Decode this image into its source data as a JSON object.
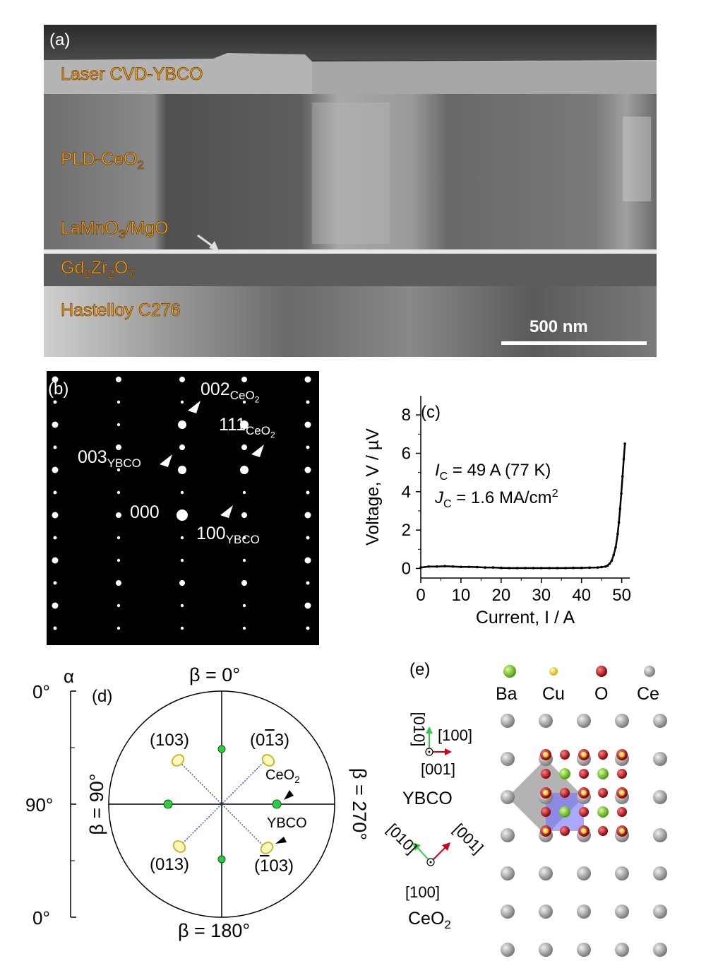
{
  "panel_a": {
    "label": "(a)",
    "layers": [
      "Laser CVD-YBCO",
      "PLD-CeO",
      "LaMnO",
      "/MgO",
      "Gd",
      "Zr",
      "O",
      "Hastelloy C276"
    ],
    "sub_ceo2": "2",
    "sub_lamno3": "3",
    "sub_gd": "2",
    "sub_zr": "2",
    "sub_o": "7",
    "scale_bar": "500 nm",
    "colors": {
      "label": "#f5a623",
      "outline": "#6b3a00",
      "bg": "#3a3a3a"
    }
  },
  "panel_b": {
    "label": "(b)",
    "annotations": {
      "s002": "002",
      "s002_sub": "CeO",
      "s111": "111",
      "s111_sub": "CeO",
      "s003": "003",
      "s003_sub": "YBCO",
      "s000": "000",
      "s100": "100",
      "s100_sub": "YBCO",
      "sub2": "2"
    }
  },
  "panel_c": {
    "label": "(c)",
    "ic_text_1": "I",
    "ic_text_2": "C",
    "ic_text_3": " = 49 A (77 K)",
    "jc_text_1": "J",
    "jc_text_2": "C",
    "jc_text_3": " = 1.6 MA/cm",
    "jc_text_4": "2",
    "chart_data": {
      "type": "line",
      "xlabel": "Current, I / A",
      "ylabel": "Voltage, V / µV",
      "xlim": [
        0,
        52
      ],
      "ylim": [
        -0.5,
        9
      ],
      "xticks": [
        0,
        10,
        20,
        30,
        40,
        50
      ],
      "yticks": [
        0,
        2,
        4,
        6,
        8
      ],
      "x": [
        0,
        2,
        4,
        6,
        8,
        10,
        12,
        14,
        16,
        18,
        20,
        22,
        24,
        26,
        28,
        30,
        32,
        34,
        36,
        38,
        40,
        42,
        44,
        45,
        46,
        46.5,
        47,
        47.5,
        48,
        48.5,
        49,
        49.3,
        49.6,
        49.9,
        50.2,
        50.5,
        50.8
      ],
      "y": [
        0.05,
        0.1,
        0.1,
        0.12,
        0.1,
        0.08,
        0.08,
        0.07,
        0.05,
        0.05,
        0.03,
        0.02,
        0.02,
        0.02,
        0.02,
        0.02,
        0.02,
        0.02,
        0.02,
        0.03,
        0.03,
        0.04,
        0.05,
        0.07,
        0.1,
        0.15,
        0.25,
        0.4,
        0.7,
        1.1,
        1.8,
        2.4,
        3.1,
        3.9,
        4.8,
        5.7,
        6.5
      ]
    }
  },
  "panel_d": {
    "label": "(d)",
    "alpha": "α",
    "alpha_ticks": [
      "0°",
      "90°",
      "0°"
    ],
    "beta_0": "β = 0°",
    "beta_90": "β = 90°",
    "beta_180": "β = 180°",
    "beta_270": "β = 270°",
    "poles": {
      "p103": "(103)",
      "p013bar_a": "(0",
      "p013bar_b": "1",
      "p013bar_c": "3)",
      "p013": "(013)",
      "p103bar_a": "(",
      "p103bar_b": "1",
      "p103bar_c": "03)"
    },
    "ceo2_a": "CeO",
    "ceo2_b": "2",
    "ybco": "YBCO",
    "colors": {
      "ceo2": "#2ecc40",
      "ybco": "#c8b830",
      "guide": "#2040c0"
    }
  },
  "panel_e": {
    "label": "(e)",
    "legend": [
      {
        "name": "Ba",
        "color": "#7ed321"
      },
      {
        "name": "Cu",
        "color": "#f8e71c"
      },
      {
        "name": "O",
        "color": "#c0101a"
      },
      {
        "name": "Ce",
        "color": "#9b9b9b"
      }
    ],
    "ybco_axes": {
      "up": "[010]",
      "right": "[100]",
      "out": "[001]",
      "name": "YBCO"
    },
    "ceo2_axes": {
      "left": "[010]",
      "right": "[001]",
      "out": "[100]",
      "name_a": "CeO",
      "name_b": "2"
    }
  }
}
